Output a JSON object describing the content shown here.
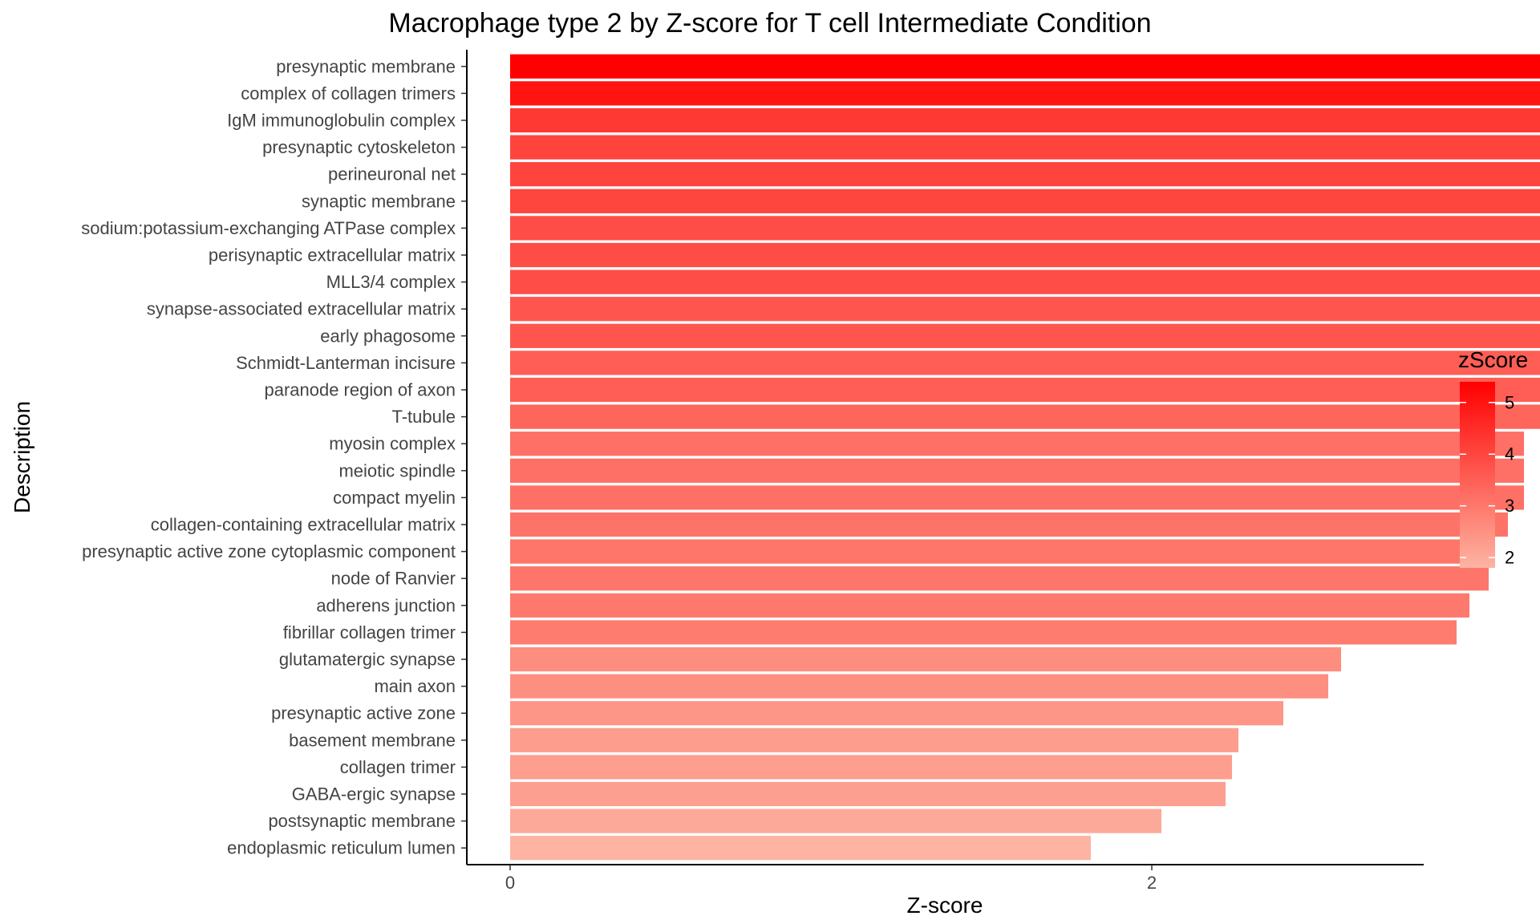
{
  "chart_data": {
    "type": "bar",
    "orientation": "horizontal",
    "title": "Macrophage type 2 by Z-score for T cell Intermediate Condition",
    "xlabel": "Z-score",
    "ylabel": "Description",
    "xlim": [
      0,
      5.6
    ],
    "xticks": [
      0,
      2,
      4
    ],
    "grid": false,
    "legend": {
      "title": "zScore",
      "placement": "right",
      "range": [
        1.8,
        5.4
      ],
      "ticks": [
        2,
        3,
        4,
        5
      ],
      "color_low": "#fdb4a3",
      "color_high": "#ff0000"
    },
    "categories": [
      "presynaptic membrane",
      "complex of collagen trimers",
      "IgM immunoglobulin complex",
      "presynaptic cytoskeleton",
      "perineuronal net",
      "synaptic membrane",
      "sodium:potassium-exchanging ATPase complex",
      "perisynaptic extracellular matrix",
      "MLL3/4 complex",
      "synapse-associated extracellular matrix",
      "early phagosome",
      "Schmidt-Lanterman incisure",
      "paranode region of axon",
      "T-tubule",
      "myosin complex",
      "meiotic spindle",
      "compact myelin",
      "collagen-containing extracellular matrix",
      "presynaptic active zone cytoplasmic component",
      "node of Ranvier",
      "adherens junction",
      "fibrillar collagen trimer",
      "glutamatergic synapse",
      "main axon",
      "presynaptic active zone",
      "basement membrane",
      "collagen trimer",
      "GABA-ergic synapse",
      "postsynaptic membrane",
      "endoplasmic reticulum lumen"
    ],
    "values": [
      5.42,
      5.0,
      4.27,
      4.05,
      4.05,
      4.03,
      3.86,
      3.86,
      3.86,
      3.68,
      3.68,
      3.53,
      3.53,
      3.39,
      3.16,
      3.16,
      3.16,
      3.11,
      3.05,
      3.05,
      2.99,
      2.95,
      2.59,
      2.55,
      2.41,
      2.27,
      2.25,
      2.23,
      2.03,
      1.81
    ]
  }
}
